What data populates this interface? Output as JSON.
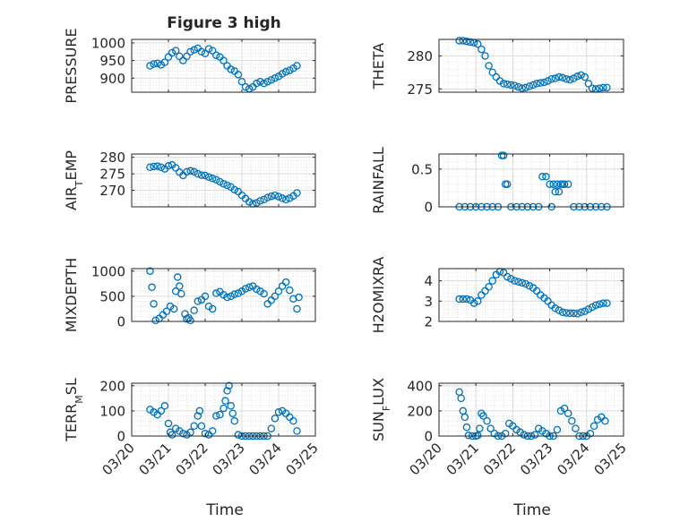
{
  "title": "Figure 3 high",
  "x_label": "Time",
  "x_ticks": [
    "03/20",
    "03/21",
    "03/22",
    "03/23",
    "03/24",
    "03/25"
  ],
  "marker_color": "#0072bd",
  "grid": true,
  "chart_data": [
    {
      "type": "scatter",
      "ylabel": "PRESSURE",
      "ylim": [
        860,
        1010
      ],
      "yticks": [
        900,
        950,
        1000
      ],
      "xlim": [
        0,
        5
      ],
      "x": [
        0.5,
        0.6,
        0.7,
        0.8,
        0.9,
        1.0,
        1.1,
        1.2,
        1.3,
        1.4,
        1.5,
        1.6,
        1.7,
        1.8,
        1.9,
        2.0,
        2.1,
        2.2,
        2.3,
        2.4,
        2.5,
        2.6,
        2.7,
        2.8,
        2.9,
        3.0,
        3.1,
        3.2,
        3.3,
        3.4,
        3.5,
        3.6,
        3.7,
        3.8,
        3.9,
        4.0,
        4.1,
        4.2,
        4.3,
        4.4,
        4.5
      ],
      "y": [
        935,
        940,
        942,
        938,
        945,
        960,
        972,
        978,
        962,
        950,
        962,
        975,
        980,
        985,
        975,
        970,
        983,
        978,
        965,
        960,
        950,
        935,
        925,
        920,
        910,
        890,
        875,
        870,
        875,
        885,
        890,
        885,
        890,
        895,
        900,
        905,
        912,
        918,
        922,
        928,
        935
      ]
    },
    {
      "type": "scatter",
      "ylabel": "THETA",
      "ylim": [
        274.5,
        282.5
      ],
      "yticks": [
        275,
        280
      ],
      "xlim": [
        0,
        5
      ],
      "x": [
        0.55,
        0.65,
        0.75,
        0.85,
        0.95,
        1.05,
        1.15,
        1.25,
        1.35,
        1.45,
        1.55,
        1.65,
        1.75,
        1.85,
        1.95,
        2.05,
        2.15,
        2.25,
        2.35,
        2.45,
        2.55,
        2.65,
        2.75,
        2.85,
        2.95,
        3.05,
        3.15,
        3.25,
        3.35,
        3.45,
        3.55,
        3.65,
        3.75,
        3.85,
        3.95,
        4.05,
        4.15,
        4.25,
        4.35,
        4.45,
        4.55
      ],
      "y": [
        282.3,
        282.3,
        282.2,
        282.1,
        282.0,
        281.8,
        281.0,
        280.0,
        278.5,
        277.5,
        276.8,
        276.2,
        275.8,
        275.7,
        275.6,
        275.5,
        275.3,
        275.1,
        275.2,
        275.4,
        275.6,
        275.8,
        275.9,
        276.0,
        276.2,
        276.5,
        276.6,
        276.8,
        276.7,
        276.5,
        276.4,
        276.6,
        276.9,
        277.1,
        276.8,
        275.8,
        275.1,
        275.0,
        275.1,
        275.2,
        275.2
      ]
    },
    {
      "type": "scatter",
      "ylabel": "AIR_TEMP",
      "ylim": [
        265,
        281
      ],
      "yticks": [
        270,
        275,
        280
      ],
      "xlim": [
        0,
        5
      ],
      "x": [
        0.5,
        0.6,
        0.7,
        0.8,
        0.9,
        1.0,
        1.1,
        1.2,
        1.3,
        1.4,
        1.5,
        1.6,
        1.7,
        1.8,
        1.9,
        2.0,
        2.1,
        2.2,
        2.3,
        2.4,
        2.5,
        2.6,
        2.7,
        2.8,
        2.9,
        3.0,
        3.1,
        3.2,
        3.3,
        3.4,
        3.5,
        3.6,
        3.7,
        3.8,
        3.9,
        4.0,
        4.1,
        4.2,
        4.3,
        4.4,
        4.5
      ],
      "y": [
        277.0,
        277.2,
        277.3,
        277.0,
        276.5,
        277.4,
        277.7,
        276.8,
        275.5,
        274.5,
        275.6,
        275.9,
        275.6,
        275.0,
        274.6,
        274.5,
        274.0,
        273.6,
        273.2,
        272.6,
        272.0,
        271.5,
        271.0,
        270.2,
        269.6,
        268.5,
        267.5,
        266.5,
        265.9,
        266.2,
        266.8,
        267.2,
        267.8,
        268.2,
        268.5,
        268.1,
        267.6,
        267.2,
        267.6,
        268.3,
        269.2
      ]
    },
    {
      "type": "scatter",
      "ylabel": "RAINFALL",
      "ylim": [
        0,
        0.7
      ],
      "yticks": [
        0,
        0.5
      ],
      "xlim": [
        0,
        5
      ],
      "x": [
        0.55,
        0.7,
        0.85,
        1.0,
        1.15,
        1.3,
        1.45,
        1.6,
        1.7,
        1.75,
        1.8,
        1.85,
        1.95,
        2.1,
        2.25,
        2.4,
        2.55,
        2.7,
        2.8,
        2.9,
        3.0,
        3.05,
        3.1,
        3.15,
        3.2,
        3.25,
        3.3,
        3.35,
        3.4,
        3.5,
        3.65,
        3.8,
        3.95,
        4.1,
        4.25,
        4.4,
        4.55
      ],
      "y": [
        0,
        0,
        0,
        0,
        0,
        0,
        0,
        0,
        0.68,
        0.68,
        0.3,
        0.3,
        0,
        0,
        0,
        0,
        0,
        0,
        0.4,
        0.4,
        0.3,
        0,
        0.3,
        0.2,
        0.3,
        0.2,
        0.3,
        0.3,
        0.3,
        0.3,
        0,
        0,
        0,
        0,
        0,
        0,
        0
      ]
    },
    {
      "type": "scatter",
      "ylabel": "MIXDEPTH",
      "ylim": [
        0,
        1050
      ],
      "yticks": [
        0,
        500,
        1000
      ],
      "xlim": [
        0,
        5
      ],
      "x": [
        0.5,
        0.55,
        0.6,
        0.65,
        0.75,
        0.85,
        0.95,
        1.05,
        1.15,
        1.2,
        1.25,
        1.3,
        1.35,
        1.45,
        1.5,
        1.55,
        1.6,
        1.7,
        1.8,
        1.9,
        2.0,
        2.1,
        2.2,
        2.3,
        2.4,
        2.5,
        2.6,
        2.7,
        2.8,
        2.9,
        3.0,
        3.1,
        3.2,
        3.3,
        3.4,
        3.5,
        3.6,
        3.7,
        3.8,
        3.9,
        4.0,
        4.1,
        4.2,
        4.3,
        4.4,
        4.5,
        4.55
      ],
      "y": [
        1000,
        680,
        350,
        20,
        60,
        130,
        200,
        300,
        250,
        600,
        880,
        700,
        550,
        150,
        50,
        70,
        20,
        220,
        400,
        430,
        500,
        300,
        250,
        560,
        590,
        530,
        480,
        500,
        540,
        560,
        600,
        650,
        680,
        700,
        640,
        600,
        550,
        350,
        420,
        500,
        600,
        700,
        780,
        620,
        450,
        250,
        480
      ]
    },
    {
      "type": "scatter",
      "ylabel": "H2OMIXRA",
      "ylim": [
        2,
        4.6
      ],
      "yticks": [
        2,
        3,
        4
      ],
      "xlim": [
        0,
        5
      ],
      "x": [
        0.55,
        0.65,
        0.75,
        0.85,
        0.95,
        1.05,
        1.15,
        1.25,
        1.35,
        1.45,
        1.55,
        1.65,
        1.75,
        1.85,
        1.95,
        2.05,
        2.15,
        2.25,
        2.35,
        2.45,
        2.55,
        2.65,
        2.75,
        2.85,
        2.95,
        3.05,
        3.15,
        3.25,
        3.35,
        3.45,
        3.55,
        3.65,
        3.75,
        3.85,
        3.95,
        4.05,
        4.15,
        4.25,
        4.35,
        4.45,
        4.55
      ],
      "y": [
        3.1,
        3.1,
        3.1,
        3.05,
        2.9,
        3.0,
        3.3,
        3.5,
        3.7,
        4.0,
        4.3,
        4.45,
        4.4,
        4.2,
        4.1,
        4.0,
        3.95,
        3.9,
        3.85,
        3.75,
        3.65,
        3.5,
        3.3,
        3.15,
        3.0,
        2.8,
        2.65,
        2.55,
        2.45,
        2.42,
        2.4,
        2.4,
        2.38,
        2.45,
        2.5,
        2.6,
        2.7,
        2.8,
        2.85,
        2.9,
        2.9
      ]
    },
    {
      "type": "scatter",
      "ylabel": "TERR_MSL",
      "ylim": [
        0,
        210
      ],
      "yticks": [
        0,
        100,
        200
      ],
      "xlim": [
        0,
        5
      ],
      "x": [
        0.5,
        0.6,
        0.7,
        0.8,
        0.9,
        1.0,
        1.05,
        1.1,
        1.2,
        1.3,
        1.4,
        1.5,
        1.6,
        1.7,
        1.8,
        1.85,
        1.9,
        2.0,
        2.1,
        2.2,
        2.3,
        2.4,
        2.5,
        2.55,
        2.6,
        2.65,
        2.7,
        2.75,
        2.8,
        2.9,
        3.0,
        3.1,
        3.2,
        3.3,
        3.4,
        3.5,
        3.6,
        3.7,
        3.8,
        3.9,
        4.0,
        4.1,
        4.2,
        4.3,
        4.4,
        4.5
      ],
      "y": [
        105,
        95,
        85,
        100,
        120,
        50,
        15,
        5,
        30,
        20,
        10,
        5,
        15,
        40,
        80,
        100,
        40,
        10,
        5,
        20,
        80,
        85,
        110,
        140,
        180,
        200,
        120,
        90,
        60,
        5,
        0,
        0,
        0,
        0,
        0,
        0,
        0,
        0,
        30,
        70,
        95,
        100,
        90,
        75,
        60,
        20
      ]
    },
    {
      "type": "scatter",
      "ylabel": "SUN_FLUX",
      "ylim": [
        0,
        420
      ],
      "yticks": [
        0,
        200,
        400
      ],
      "xlim": [
        0,
        5
      ],
      "x": [
        0.55,
        0.6,
        0.65,
        0.7,
        0.75,
        0.8,
        0.9,
        1.0,
        1.05,
        1.1,
        1.15,
        1.2,
        1.3,
        1.4,
        1.5,
        1.6,
        1.7,
        1.8,
        1.9,
        2.0,
        2.1,
        2.2,
        2.3,
        2.4,
        2.5,
        2.6,
        2.7,
        2.8,
        2.9,
        3.0,
        3.1,
        3.2,
        3.3,
        3.4,
        3.5,
        3.6,
        3.7,
        3.8,
        3.9,
        4.0,
        4.1,
        4.2,
        4.3,
        4.4,
        4.5
      ],
      "y": [
        350,
        300,
        200,
        150,
        70,
        5,
        0,
        0,
        5,
        60,
        180,
        160,
        120,
        60,
        20,
        0,
        0,
        20,
        100,
        80,
        50,
        30,
        10,
        0,
        0,
        10,
        60,
        40,
        20,
        0,
        0,
        50,
        200,
        220,
        180,
        120,
        60,
        0,
        0,
        0,
        20,
        80,
        130,
        150,
        120
      ]
    }
  ]
}
